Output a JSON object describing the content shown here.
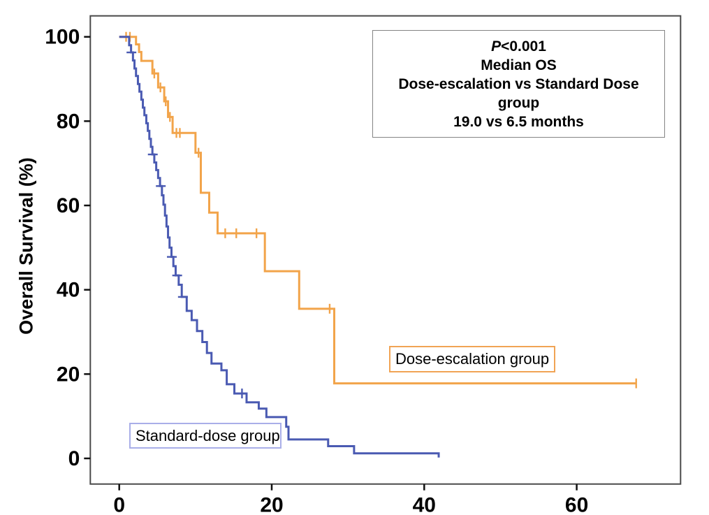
{
  "chart_data": {
    "type": "line",
    "subtype": "kaplan_meier_step",
    "title": "",
    "xlabel": "",
    "ylabel": "Overall Survival (%)",
    "x_unit": "months",
    "xlim": [
      0,
      73.6
    ],
    "ylim": [
      0,
      100
    ],
    "x_ticks": [
      0,
      20,
      40,
      60
    ],
    "y_ticks": [
      0,
      20,
      40,
      60,
      80,
      100
    ],
    "grid": false,
    "series": [
      {
        "name": "Dose-escalation group",
        "color": "#f2a44a",
        "steps": [
          [
            0,
            100
          ],
          [
            2.2,
            98.2
          ],
          [
            2.6,
            96.4
          ],
          [
            2.9,
            94.3
          ],
          [
            4.35,
            91.3
          ],
          [
            5.1,
            88.0
          ],
          [
            5.9,
            84.7
          ],
          [
            6.4,
            81.0
          ],
          [
            7.0,
            77.2
          ],
          [
            10.0,
            72.5
          ],
          [
            10.7,
            63.0
          ],
          [
            11.8,
            58.3
          ],
          [
            12.9,
            53.4
          ],
          [
            19.1,
            44.4
          ],
          [
            23.6,
            35.5
          ],
          [
            28.2,
            17.8
          ]
        ],
        "end_time": 67.8,
        "censors": [
          [
            0.9,
            100,
            "v"
          ],
          [
            1.4,
            100,
            "v"
          ],
          [
            4.6,
            91.3,
            "v"
          ],
          [
            5.4,
            88.0,
            "v"
          ],
          [
            6.1,
            84.7,
            "v"
          ],
          [
            6.65,
            81.0,
            "v"
          ],
          [
            7.5,
            77.2,
            "v"
          ],
          [
            7.95,
            77.2,
            "v"
          ],
          [
            10.4,
            72.5,
            "v"
          ],
          [
            13.9,
            53.4,
            "v"
          ],
          [
            15.35,
            53.4,
            "v"
          ],
          [
            18.0,
            53.4,
            "v"
          ],
          [
            27.6,
            35.5,
            "v"
          ],
          [
            67.8,
            17.8,
            "v"
          ]
        ]
      },
      {
        "name": "Standard-dose group",
        "color": "#4a5ab2",
        "steps": [
          [
            0,
            100
          ],
          [
            1.3,
            98.0
          ],
          [
            1.55,
            96.3
          ],
          [
            1.8,
            94.4
          ],
          [
            2.0,
            92.5
          ],
          [
            2.2,
            90.7
          ],
          [
            2.45,
            88.8
          ],
          [
            2.65,
            87.0
          ],
          [
            2.9,
            85.1
          ],
          [
            3.1,
            83.2
          ],
          [
            3.3,
            81.4
          ],
          [
            3.55,
            79.5
          ],
          [
            3.75,
            77.7
          ],
          [
            3.95,
            75.8
          ],
          [
            4.15,
            73.9
          ],
          [
            4.35,
            72.1
          ],
          [
            4.6,
            70.2
          ],
          [
            4.85,
            68.4
          ],
          [
            5.1,
            66.5
          ],
          [
            5.35,
            64.6
          ],
          [
            5.6,
            62.4
          ],
          [
            5.8,
            60.2
          ],
          [
            6.0,
            57.6
          ],
          [
            6.2,
            55.0
          ],
          [
            6.4,
            52.4
          ],
          [
            6.6,
            50.0
          ],
          [
            6.85,
            47.8
          ],
          [
            7.1,
            45.6
          ],
          [
            7.4,
            43.4
          ],
          [
            7.8,
            41.2
          ],
          [
            8.2,
            38.3
          ],
          [
            8.85,
            35.0
          ],
          [
            9.5,
            32.8
          ],
          [
            10.2,
            30.2
          ],
          [
            10.9,
            27.6
          ],
          [
            11.5,
            25.0
          ],
          [
            12.1,
            22.5
          ],
          [
            13.4,
            20.9
          ],
          [
            14.1,
            17.6
          ],
          [
            15.1,
            15.4
          ],
          [
            16.7,
            13.3
          ],
          [
            18.3,
            11.8
          ],
          [
            19.3,
            9.8
          ],
          [
            21.9,
            7.5
          ],
          [
            22.2,
            4.5
          ],
          [
            27.4,
            2.9
          ],
          [
            30.8,
            1.2
          ],
          [
            41.9,
            0.2
          ]
        ],
        "end_time": 41.9,
        "censors": [
          [
            1.6,
            96.3,
            "h"
          ],
          [
            4.4,
            72.1,
            "h"
          ],
          [
            5.45,
            64.6,
            "h"
          ],
          [
            6.9,
            47.8,
            "h"
          ],
          [
            7.6,
            43.4,
            "h"
          ],
          [
            8.35,
            38.3,
            "h"
          ],
          [
            16.1,
            15.4,
            "v"
          ]
        ]
      }
    ],
    "annotation": {
      "line1_italic": "P",
      "line1_rest": "<0.001",
      "lines": [
        "Median OS",
        "Dose-escalation vs Standard Dose",
        "group",
        "19.0 vs 6.5 months"
      ]
    }
  }
}
